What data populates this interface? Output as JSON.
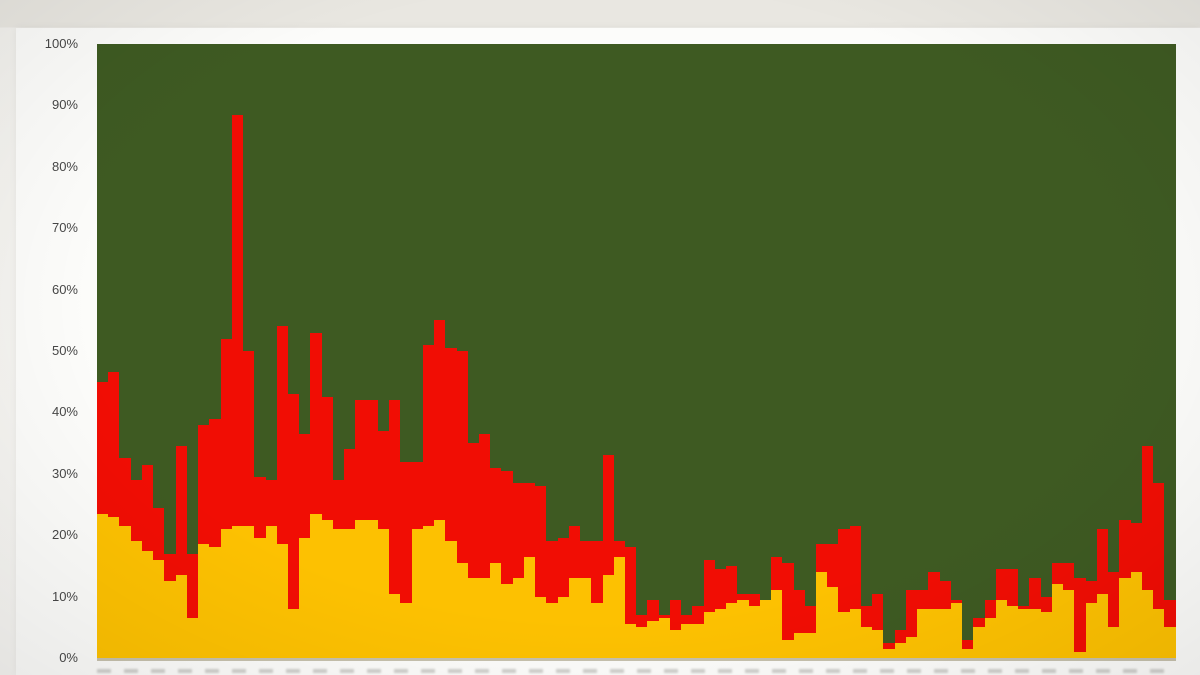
{
  "y_axis": {
    "ticks": [
      {
        "label": "100%",
        "value": 100
      },
      {
        "label": "90%",
        "value": 90
      },
      {
        "label": "80%",
        "value": 80
      },
      {
        "label": "70%",
        "value": 70
      },
      {
        "label": "60%",
        "value": 60
      },
      {
        "label": "50%",
        "value": 50
      },
      {
        "label": "40%",
        "value": 40
      },
      {
        "label": "30%",
        "value": 30
      },
      {
        "label": "20%",
        "value": 20
      },
      {
        "label": "10%",
        "value": 10
      },
      {
        "label": "0%",
        "value": 0
      }
    ]
  },
  "chart_data": {
    "type": "bar",
    "stacked": "100%",
    "n_bars": 96,
    "ylim": [
      0,
      100
    ],
    "grid": false,
    "legend": false,
    "colors": {
      "green_top": "#3E5A22",
      "red_middle": "#F10D04",
      "yellow_bottom": "#FDC101",
      "panel_background": "#FCFCFA",
      "outer_background": "#E9E7E1",
      "tick_label": "#474747"
    },
    "series": [
      {
        "name": "green (top remainder)",
        "color": "#3E5A22",
        "values": [
          55,
          53.5,
          67.5,
          71,
          68.5,
          75.5,
          83,
          65.5,
          83,
          62,
          61,
          48,
          11.5,
          50,
          70.5,
          71,
          46,
          57,
          63.5,
          47,
          57.5,
          71,
          66,
          58,
          58,
          63,
          58,
          68,
          68,
          49,
          45,
          49.5,
          50,
          65,
          63.5,
          69,
          69.5,
          71.5,
          71.5,
          72,
          81,
          80.5,
          78.5,
          81,
          81,
          67,
          81,
          82,
          93,
          90.5,
          93,
          90.5,
          93,
          91.5,
          84,
          85.5,
          85,
          89.5,
          89.5,
          90.5,
          83.5,
          84.5,
          89,
          91.5,
          81.5,
          81.5,
          79,
          78.5,
          91.5,
          89.5,
          97.5,
          95.5,
          89,
          89,
          86,
          87.5,
          90.5,
          97,
          93.5,
          90.5,
          85.5,
          85.5,
          91.5,
          87,
          90,
          84.5,
          84.5,
          87,
          87.5,
          79,
          86,
          77.5,
          78,
          65.5,
          71.5,
          90.5
        ]
      },
      {
        "name": "red (middle)",
        "color": "#F10D04",
        "values": [
          21.5,
          23.5,
          11,
          10,
          14,
          8.5,
          4.5,
          21,
          10.5,
          19.5,
          21,
          31,
          67,
          28.5,
          10,
          7.5,
          35.5,
          35,
          17,
          29.5,
          20,
          8,
          13,
          19.5,
          19.5,
          16,
          31.5,
          23,
          11,
          29.5,
          32.5,
          31.5,
          34.5,
          22,
          23.5,
          15.5,
          18.5,
          15.5,
          12,
          18,
          10,
          9.5,
          8.5,
          6,
          10,
          19.5,
          2.5,
          12.5,
          2,
          3.5,
          0.5,
          5,
          1.5,
          3,
          8.5,
          6.5,
          6,
          1,
          2,
          0,
          5.5,
          12.5,
          7,
          4.5,
          4.5,
          7,
          13.5,
          13.5,
          3.5,
          6,
          1,
          2,
          7.5,
          3,
          6,
          4.5,
          0.5,
          1.5,
          1.5,
          3,
          5,
          6,
          0.5,
          5,
          2.5,
          3.5,
          4.5,
          12,
          3.5,
          10.5,
          9,
          9.5,
          8,
          23.5,
          20.5,
          4.5
        ]
      },
      {
        "name": "yellow (bottom)",
        "color": "#FDC101",
        "values": [
          23.5,
          23,
          21.5,
          19,
          17.5,
          16,
          12.5,
          13.5,
          6.5,
          18.5,
          18,
          21,
          21.5,
          21.5,
          19.5,
          21.5,
          18.5,
          8,
          19.5,
          23.5,
          22.5,
          21,
          21,
          22.5,
          22.5,
          21,
          10.5,
          9,
          21,
          21.5,
          22.5,
          19,
          15.5,
          13,
          13,
          15.5,
          12,
          13,
          16.5,
          10,
          9,
          10,
          13,
          13,
          9,
          13.5,
          16.5,
          5.5,
          5,
          6,
          6.5,
          4.5,
          5.5,
          5.5,
          7.5,
          8,
          9,
          9.5,
          8.5,
          9.5,
          11,
          3,
          4,
          4,
          14,
          11.5,
          7.5,
          8,
          5,
          4.5,
          1.5,
          2.5,
          3.5,
          8,
          8,
          8,
          9,
          1.5,
          5,
          6.5,
          9.5,
          8.5,
          8,
          8,
          7.5,
          12,
          11,
          1,
          9,
          10.5,
          5,
          13,
          14,
          11,
          8,
          5
        ]
      }
    ]
  }
}
